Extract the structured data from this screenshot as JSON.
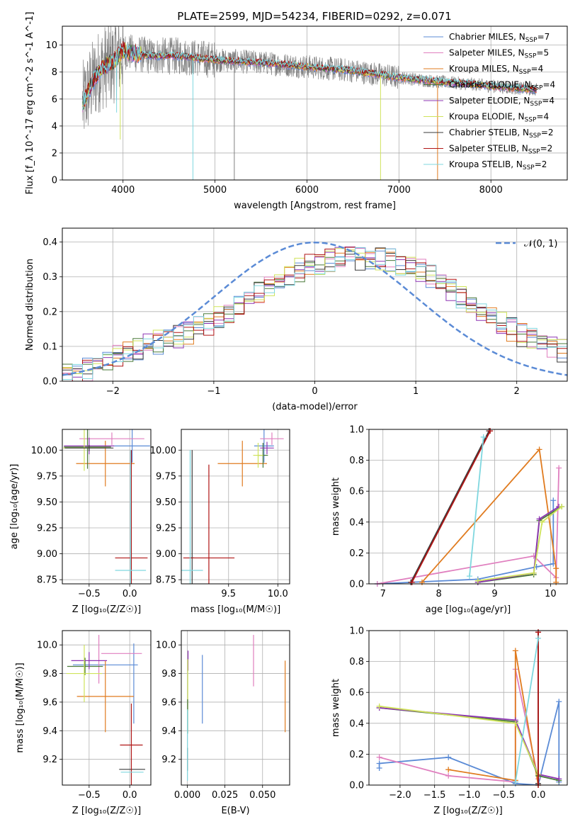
{
  "title": "PLATE=2599, MJD=54234, FIBERID=0292, z=0.071",
  "colors": {
    "chabrier_miles": "#5b8bd6",
    "salpeter_miles": "#e07fbf",
    "kroupa_miles": "#e07b1f",
    "chabrier_elodie": "#4a7a3a",
    "salpeter_elodie": "#8e35b3",
    "kroupa_elodie": "#cfe35a",
    "chabrier_stelib": "#3b3b3b",
    "salpeter_stelib": "#b01515",
    "kroupa_stelib": "#7fd7df",
    "data": "#808080",
    "normal": "#5b8bd6"
  },
  "chart_data": [
    {
      "type": "line",
      "name": "spectrum",
      "title": "PLATE=2599, MJD=54234, FIBERID=0292, z=0.071",
      "xlabel": "wavelength [Angstrom, rest frame]",
      "ylabel": "Flux [f_λ 10^-17 erg cm^-2 s^-1 A^-1]",
      "xlim": [
        3340,
        8830
      ],
      "ylim": [
        0,
        11.4
      ],
      "xticks": [
        4000,
        5000,
        6000,
        7000,
        8000
      ],
      "yticks": [
        0,
        2,
        4,
        6,
        8,
        10
      ],
      "legend_position": "top-right",
      "legend": [
        {
          "label": "Chabrier MILES, N",
          "sub": "SSP",
          "suffix": "=7",
          "color_key": "chabrier_miles"
        },
        {
          "label": "Salpeter MILES, N",
          "sub": "SSP",
          "suffix": "=5",
          "color_key": "salpeter_miles"
        },
        {
          "label": "Kroupa MILES, N",
          "sub": "SSP",
          "suffix": "=4",
          "color_key": "kroupa_miles"
        },
        {
          "label": "Chabrier ELODIE, N",
          "sub": "SSP",
          "suffix": "=4",
          "color_key": "chabrier_elodie"
        },
        {
          "label": "Salpeter ELODIE, N",
          "sub": "SSP",
          "suffix": "=4",
          "color_key": "salpeter_elodie"
        },
        {
          "label": "Kroupa ELODIE, N",
          "sub": "SSP",
          "suffix": "=4",
          "color_key": "kroupa_elodie"
        },
        {
          "label": "Chabrier STELIB, N",
          "sub": "SSP",
          "suffix": "=2",
          "color_key": "chabrier_stelib"
        },
        {
          "label": "Salpeter STELIB, N",
          "sub": "SSP",
          "suffix": "=2",
          "color_key": "salpeter_stelib"
        },
        {
          "label": "Kroupa STELIB, N",
          "sub": "SSP",
          "suffix": "=2",
          "color_key": "kroupa_stelib"
        }
      ],
      "data_range": [
        3560,
        8500
      ],
      "model_envelope": [
        [
          3560,
          5.6
        ],
        [
          3650,
          7.0
        ],
        [
          3750,
          8.2
        ],
        [
          3900,
          8.8
        ],
        [
          4000,
          9.6
        ],
        [
          4100,
          9.4
        ],
        [
          4300,
          9.2
        ],
        [
          4600,
          9.2
        ],
        [
          5000,
          8.9
        ],
        [
          5500,
          8.7
        ],
        [
          6000,
          8.4
        ],
        [
          6500,
          8.1
        ],
        [
          7000,
          7.6
        ],
        [
          7400,
          7.3
        ],
        [
          7800,
          7.1
        ],
        [
          8100,
          6.9
        ],
        [
          8300,
          6.8
        ],
        [
          8500,
          6.7
        ]
      ],
      "absorption_features": [
        {
          "x": 3930,
          "depth": 5.0,
          "color_key": "kroupa_stelib"
        },
        {
          "x": 3970,
          "depth": 3.0,
          "color_key": "kroupa_elodie"
        },
        {
          "x": 4760,
          "depth": 0.0,
          "color_key": "kroupa_stelib"
        },
        {
          "x": 5210,
          "depth": 0.0,
          "color_key": "data"
        },
        {
          "x": 6800,
          "depth": 0.0,
          "color_key": "kroupa_elodie"
        },
        {
          "x": 7420,
          "depth": 0.0,
          "color_key": "kroupa_miles"
        }
      ]
    },
    {
      "type": "step",
      "name": "residual_distribution",
      "xlabel": "(data-model)/error",
      "ylabel": "Normed distribution",
      "xlim": [
        -2.5,
        2.5
      ],
      "ylim": [
        0,
        0.44
      ],
      "xticks": [
        -2,
        -1,
        0,
        1,
        2
      ],
      "yticks": [
        0.0,
        0.1,
        0.2,
        0.3,
        0.4
      ],
      "legend": {
        "label": "𝒩(0, 1)",
        "position": "top-right"
      },
      "bin_width": 0.1,
      "bins_start": -2.5,
      "smooth_shape": [
        0.028,
        0.03,
        0.035,
        0.045,
        0.058,
        0.072,
        0.082,
        0.096,
        0.104,
        0.112,
        0.122,
        0.13,
        0.14,
        0.152,
        0.166,
        0.18,
        0.196,
        0.214,
        0.234,
        0.254,
        0.272,
        0.29,
        0.306,
        0.32,
        0.332,
        0.34,
        0.346,
        0.35,
        0.352,
        0.353,
        0.354,
        0.352,
        0.348,
        0.34,
        0.33,
        0.318,
        0.3,
        0.284,
        0.262,
        0.24,
        0.218,
        0.196,
        0.18,
        0.164,
        0.148,
        0.134,
        0.12,
        0.106,
        0.096,
        0.088
      ]
    },
    {
      "type": "errorbar",
      "name": "age_vs_Z",
      "xlabel": "Z [log₁₀(Z/Z☉)]",
      "ylabel": "age  [log₁₀(age/yr)]",
      "xlim": [
        -0.83,
        0.26
      ],
      "ylim": [
        8.71,
        10.2
      ],
      "xticks": [
        -0.5,
        0.0
      ],
      "yticks": [
        8.75,
        9.0,
        9.25,
        9.5,
        9.75,
        10.0
      ],
      "points": [
        {
          "color_key": "chabrier_miles",
          "x": 0.03,
          "y": 10.04,
          "xerr": 0.22,
          "yerr": 0.16
        },
        {
          "color_key": "salpeter_miles",
          "x": -0.22,
          "y": 10.11,
          "xerr": 0.4,
          "yerr": 0.06
        },
        {
          "color_key": "kroupa_miles",
          "x": -0.3,
          "y": 9.87,
          "xerr": 0.36,
          "yerr": 0.22
        },
        {
          "color_key": "chabrier_elodie",
          "x": -0.52,
          "y": 10.03,
          "xerr": 0.29,
          "yerr": 0.21
        },
        {
          "color_key": "salpeter_elodie",
          "x": -0.5,
          "y": 10.04,
          "xerr": 0.31,
          "yerr": 0.08
        },
        {
          "color_key": "kroupa_elodie",
          "x": -0.56,
          "y": 10.02,
          "xerr": 0.26,
          "yerr": 0.22
        },
        {
          "color_key": "chabrier_stelib",
          "x": -0.5,
          "y": 10.02,
          "xerr": 0.3,
          "yerr": 0.03
        },
        {
          "color_key": "salpeter_stelib",
          "x": 0.02,
          "y": 8.96,
          "xerr": 0.2,
          "yerr": 1.04
        },
        {
          "color_key": "kroupa_stelib",
          "x": 0.01,
          "y": 8.84,
          "xerr": 0.19,
          "yerr": 1.16
        }
      ]
    },
    {
      "type": "errorbar",
      "name": "age_vs_mass",
      "xlabel": "mass [log₁₀(M/M☉)]",
      "ylabel": "",
      "xlim": [
        9.02,
        10.12
      ],
      "ylim": [
        8.71,
        10.2
      ],
      "xticks": [
        9.5,
        10.0
      ],
      "yticks": [
        8.75,
        9.0,
        9.25,
        9.5,
        9.75,
        10.0
      ],
      "points": [
        {
          "color_key": "chabrier_miles",
          "x": 9.86,
          "y": 10.04,
          "xerr": 0.1,
          "yerr": 0.16
        },
        {
          "color_key": "salpeter_miles",
          "x": 9.94,
          "y": 10.11,
          "xerr": 0.12,
          "yerr": 0.06
        },
        {
          "color_key": "kroupa_miles",
          "x": 9.64,
          "y": 9.87,
          "xerr": 0.25,
          "yerr": 0.22
        },
        {
          "color_key": "chabrier_elodie",
          "x": 9.85,
          "y": 9.95,
          "xerr": 0.05,
          "yerr": 0.12
        },
        {
          "color_key": "salpeter_elodie",
          "x": 9.89,
          "y": 10.02,
          "xerr": 0.07,
          "yerr": 0.06
        },
        {
          "color_key": "kroupa_elodie",
          "x": 9.8,
          "y": 9.95,
          "xerr": 0.05,
          "yerr": 0.12
        },
        {
          "color_key": "chabrier_stelib",
          "x": 9.13,
          "y": 8.96,
          "xerr": 0.02,
          "yerr": 1.04
        },
        {
          "color_key": "salpeter_stelib",
          "x": 9.3,
          "y": 8.96,
          "xerr": 0.26,
          "yerr": 0.9
        },
        {
          "color_key": "kroupa_stelib",
          "x": 9.11,
          "y": 8.84,
          "xerr": 0.13,
          "yerr": 1.16
        }
      ]
    },
    {
      "type": "line",
      "name": "mass_weight_vs_age",
      "xlabel": "age  [log₁₀(age/yr)]",
      "ylabel": "mass weight",
      "xlim": [
        6.75,
        10.3
      ],
      "ylim": [
        0,
        1.0
      ],
      "xticks": [
        7,
        8,
        9,
        10
      ],
      "yticks": [
        0.0,
        0.2,
        0.4,
        0.6,
        0.8,
        1.0
      ],
      "series": [
        {
          "color_key": "chabrier_miles",
          "points": [
            [
              6.9,
              0.0
            ],
            [
              8.7,
              0.03
            ],
            [
              9.75,
              0.11
            ],
            [
              10.05,
              0.13
            ],
            [
              10.05,
              0.54
            ]
          ]
        },
        {
          "color_key": "salpeter_miles",
          "points": [
            [
              6.9,
              0.0
            ],
            [
              9.7,
              0.18
            ],
            [
              10.1,
              0.04
            ],
            [
              10.15,
              0.75
            ]
          ]
        },
        {
          "color_key": "kroupa_miles",
          "points": [
            [
              7.7,
              0.01
            ],
            [
              9.8,
              0.87
            ],
            [
              10.1,
              0.1
            ],
            [
              10.1,
              0.01
            ]
          ]
        },
        {
          "color_key": "chabrier_elodie",
          "points": [
            [
              8.7,
              0.01
            ],
            [
              9.7,
              0.06
            ],
            [
              9.8,
              0.41
            ],
            [
              10.2,
              0.5
            ]
          ]
        },
        {
          "color_key": "salpeter_elodie",
          "points": [
            [
              8.7,
              0.01
            ],
            [
              9.7,
              0.07
            ],
            [
              9.8,
              0.42
            ],
            [
              10.15,
              0.5
            ]
          ]
        },
        {
          "color_key": "kroupa_elodie",
          "points": [
            [
              8.7,
              0.02
            ],
            [
              9.7,
              0.07
            ],
            [
              9.85,
              0.4
            ],
            [
              10.2,
              0.5
            ]
          ]
        },
        {
          "color_key": "chabrier_stelib",
          "points": [
            [
              7.5,
              0.01
            ],
            [
              8.9,
              0.99
            ]
          ]
        },
        {
          "color_key": "salpeter_stelib",
          "points": [
            [
              7.52,
              0.01
            ],
            [
              8.92,
              0.99
            ]
          ]
        },
        {
          "color_key": "kroupa_stelib",
          "points": [
            [
              8.55,
              0.05
            ],
            [
              8.8,
              0.95
            ]
          ]
        }
      ]
    },
    {
      "type": "errorbar",
      "name": "mass_vs_Z",
      "xlabel": "Z [log₁₀(Z/Z☉)]",
      "ylabel": "mass [log₁₀(M/M☉)]",
      "xlim": [
        -0.83,
        0.26
      ],
      "ylim": [
        9.02,
        10.1
      ],
      "xticks": [
        -0.5,
        0.0
      ],
      "yticks": [
        9.2,
        9.4,
        9.6,
        9.8,
        10.0
      ],
      "points": [
        {
          "color_key": "chabrier_miles",
          "x": -0.3,
          "y": 9.86,
          "xerr": 0.4,
          "yerr": 0.0
        },
        {
          "color_key": "chabrier_miles",
          "x": 0.05,
          "y": 9.73,
          "xerr": 0.0,
          "yerr": 0.28
        },
        {
          "color_key": "salpeter_miles",
          "x": -0.1,
          "y": 9.94,
          "xerr": 0.25,
          "yerr": 0.0
        },
        {
          "color_key": "salpeter_miles",
          "x": -0.38,
          "y": 9.9,
          "xerr": 0.0,
          "yerr": 0.17
        },
        {
          "color_key": "kroupa_miles",
          "x": -0.3,
          "y": 9.64,
          "xerr": 0.35,
          "yerr": 0.0
        },
        {
          "color_key": "kroupa_miles",
          "x": -0.3,
          "y": 9.64,
          "xerr": 0.0,
          "yerr": 0.25
        },
        {
          "color_key": "chabrier_elodie",
          "x": -0.55,
          "y": 9.85,
          "xerr": 0.22,
          "yerr": 0.06
        },
        {
          "color_key": "salpeter_elodie",
          "x": -0.5,
          "y": 9.89,
          "xerr": 0.22,
          "yerr": 0.06
        },
        {
          "color_key": "kroupa_elodie",
          "x": -0.56,
          "y": 9.8,
          "xerr": 0.22,
          "yerr": 0.2
        },
        {
          "color_key": "chabrier_stelib",
          "x": 0.03,
          "y": 9.13,
          "xerr": 0.16,
          "yerr": 0.0
        },
        {
          "color_key": "salpeter_stelib",
          "x": 0.02,
          "y": 9.3,
          "xerr": 0.14,
          "yerr": 0.29
        },
        {
          "color_key": "kroupa_stelib",
          "x": 0.03,
          "y": 9.11,
          "xerr": 0.14,
          "yerr": 0.0
        }
      ]
    },
    {
      "type": "errorbar",
      "name": "mass_vs_ebv",
      "xlabel": "E(B-V)",
      "ylabel": "",
      "xlim": [
        -0.004,
        0.068
      ],
      "ylim": [
        9.02,
        10.1
      ],
      "xticks": [
        0.0,
        0.025,
        0.05
      ],
      "yticks": [
        9.2,
        9.4,
        9.6,
        9.8,
        10.0
      ],
      "points": [
        {
          "color_key": "chabrier_miles",
          "x": 0.01,
          "y": 9.69,
          "xerr": 0,
          "yerr": 0.24
        },
        {
          "color_key": "salpeter_miles",
          "x": 0.044,
          "y": 9.89,
          "xerr": 0,
          "yerr": 0.18
        },
        {
          "color_key": "kroupa_miles",
          "x": 0.065,
          "y": 9.64,
          "xerr": 0,
          "yerr": 0.25
        },
        {
          "color_key": "salpeter_elodie",
          "x": 0.0005,
          "y": 9.89,
          "xerr": 0,
          "yerr": 0.07
        },
        {
          "color_key": "kroupa_elodie",
          "x": 0.0003,
          "y": 9.72,
          "xerr": 0,
          "yerr": 0.18
        },
        {
          "color_key": "chabrier_elodie",
          "x": 0.0002,
          "y": 9.5,
          "xerr": 0,
          "yerr": 0.12
        },
        {
          "color_key": "chabrier_stelib",
          "x": 0.0001,
          "y": 9.2,
          "xerr": 0,
          "yerr": 0.08
        },
        {
          "color_key": "kroupa_stelib",
          "x": 0.0001,
          "y": 9.3,
          "xerr": 0,
          "yerr": 0.25
        }
      ]
    },
    {
      "type": "line",
      "name": "mass_weight_vs_Z",
      "xlabel": "Z [log₁₀(Z/Z☉)]",
      "ylabel": "mass weight",
      "xlim": [
        -2.45,
        0.42
      ],
      "ylim": [
        0,
        1.0
      ],
      "xticks": [
        -2.0,
        -1.5,
        -1.0,
        -0.5,
        0.0
      ],
      "yticks": [
        0.0,
        0.2,
        0.4,
        0.6,
        0.8,
        1.0
      ],
      "series": [
        {
          "color_key": "chabrier_miles",
          "points": [
            [
              -2.3,
              0.11
            ],
            [
              -2.3,
              0.14
            ],
            [
              -1.3,
              0.18
            ],
            [
              -0.33,
              0.01
            ],
            [
              0.0,
              0.0
            ],
            [
              0.3,
              0.54
            ],
            [
              0.3,
              0.02
            ]
          ]
        },
        {
          "color_key": "salpeter_miles",
          "points": [
            [
              -2.3,
              0.18
            ],
            [
              -1.3,
              0.06
            ],
            [
              -0.33,
              0.02
            ],
            [
              -0.33,
              0.75
            ],
            [
              0.0,
              0.04
            ]
          ]
        },
        {
          "color_key": "kroupa_miles",
          "points": [
            [
              -1.3,
              0.1
            ],
            [
              -0.33,
              0.03
            ],
            [
              -0.33,
              0.87
            ],
            [
              0.0,
              0.0
            ]
          ]
        },
        {
          "color_key": "chabrier_elodie",
          "points": [
            [
              -2.3,
              0.5
            ],
            [
              -0.33,
              0.41
            ],
            [
              0.0,
              0.06
            ],
            [
              0.3,
              0.03
            ]
          ]
        },
        {
          "color_key": "salpeter_elodie",
          "points": [
            [
              -2.3,
              0.5
            ],
            [
              -0.33,
              0.42
            ],
            [
              0.0,
              0.07
            ],
            [
              0.3,
              0.04
            ]
          ]
        },
        {
          "color_key": "kroupa_elodie",
          "points": [
            [
              -2.3,
              0.51
            ],
            [
              -0.33,
              0.4
            ],
            [
              0.0,
              0.07
            ]
          ]
        },
        {
          "color_key": "chabrier_stelib",
          "points": [
            [
              0.0,
              0.99
            ],
            [
              0.0,
              0.01
            ]
          ]
        },
        {
          "color_key": "salpeter_stelib",
          "points": [
            [
              0.0,
              0.99
            ],
            [
              0.0,
              0.0
            ]
          ]
        },
        {
          "color_key": "kroupa_stelib",
          "points": [
            [
              -0.33,
              0.02
            ],
            [
              0.0,
              0.95
            ]
          ]
        }
      ]
    }
  ]
}
